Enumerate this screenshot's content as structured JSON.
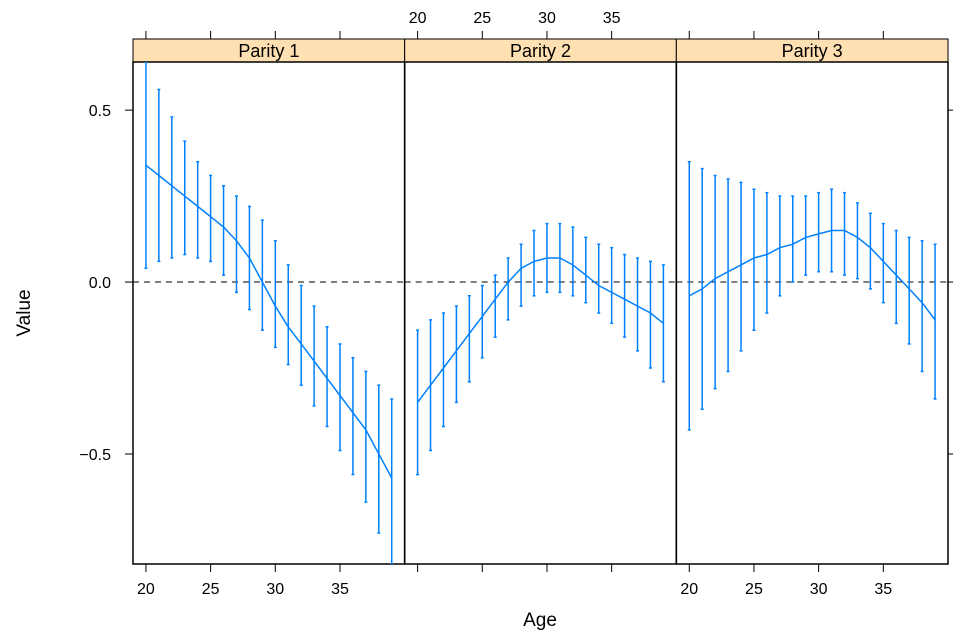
{
  "chart_data": {
    "type": "line",
    "xlabel": "Age",
    "ylabel": "Value",
    "xlim": [
      19,
      40
    ],
    "ylim": [
      -0.82,
      0.64
    ],
    "x_ticks": [
      20,
      25,
      30,
      35
    ],
    "x_tick_labels": [
      "20",
      "25",
      "30",
      "35"
    ],
    "y_ticks": [
      -0.5,
      0.0,
      0.5
    ],
    "y_tick_labels": [
      "−0.5",
      "0.0",
      "0.5"
    ],
    "reference_line": {
      "y": 0,
      "style": "dashed"
    },
    "strip_color": "#ffe0b3",
    "series_color": "#0080ff",
    "panels": [
      {
        "name": "Parity 1",
        "x": [
          20,
          21,
          22,
          23,
          24,
          25,
          26,
          27,
          28,
          29,
          30,
          31,
          32,
          33,
          34,
          35,
          36,
          37,
          38,
          39
        ],
        "fit": [
          0.34,
          0.31,
          0.28,
          0.25,
          0.22,
          0.19,
          0.16,
          0.12,
          0.07,
          0.0,
          -0.07,
          -0.13,
          -0.18,
          -0.23,
          -0.28,
          -0.33,
          -0.38,
          -0.43,
          -0.5,
          -0.57
        ],
        "lower": [
          0.04,
          0.06,
          0.07,
          0.08,
          0.07,
          0.06,
          0.02,
          -0.03,
          -0.08,
          -0.14,
          -0.19,
          -0.24,
          -0.3,
          -0.36,
          -0.42,
          -0.49,
          -0.56,
          -0.64,
          -0.73,
          -0.82
        ],
        "upper": [
          0.64,
          0.56,
          0.48,
          0.41,
          0.35,
          0.31,
          0.28,
          0.25,
          0.22,
          0.18,
          0.12,
          0.05,
          -0.01,
          -0.07,
          -0.13,
          -0.18,
          -0.22,
          -0.26,
          -0.3,
          -0.34
        ]
      },
      {
        "name": "Parity 2",
        "x": [
          20,
          21,
          22,
          23,
          24,
          25,
          26,
          27,
          28,
          29,
          30,
          31,
          32,
          33,
          34,
          35,
          36,
          37,
          38,
          39
        ],
        "fit": [
          -0.35,
          -0.3,
          -0.25,
          -0.2,
          -0.15,
          -0.1,
          -0.05,
          0.0,
          0.04,
          0.06,
          0.07,
          0.07,
          0.05,
          0.02,
          -0.01,
          -0.03,
          -0.05,
          -0.07,
          -0.09,
          -0.12
        ],
        "lower": [
          -0.56,
          -0.49,
          -0.42,
          -0.35,
          -0.29,
          -0.22,
          -0.16,
          -0.11,
          -0.07,
          -0.04,
          -0.03,
          -0.03,
          -0.04,
          -0.06,
          -0.09,
          -0.12,
          -0.16,
          -0.2,
          -0.25,
          -0.29
        ],
        "upper": [
          -0.14,
          -0.11,
          -0.09,
          -0.07,
          -0.04,
          -0.01,
          0.02,
          0.07,
          0.11,
          0.15,
          0.17,
          0.17,
          0.16,
          0.13,
          0.11,
          0.1,
          0.08,
          0.07,
          0.06,
          0.05
        ]
      },
      {
        "name": "Parity 3",
        "x": [
          20,
          21,
          22,
          23,
          24,
          25,
          26,
          27,
          28,
          29,
          30,
          31,
          32,
          33,
          34,
          35,
          36,
          37,
          38,
          39
        ],
        "fit": [
          -0.04,
          -0.02,
          0.01,
          0.03,
          0.05,
          0.07,
          0.08,
          0.1,
          0.11,
          0.13,
          0.14,
          0.15,
          0.15,
          0.13,
          0.1,
          0.06,
          0.02,
          -0.02,
          -0.06,
          -0.11
        ],
        "lower": [
          -0.43,
          -0.37,
          -0.31,
          -0.26,
          -0.2,
          -0.14,
          -0.09,
          -0.04,
          0.0,
          0.02,
          0.03,
          0.03,
          0.02,
          0.01,
          -0.02,
          -0.06,
          -0.12,
          -0.18,
          -0.26,
          -0.34
        ],
        "upper": [
          0.35,
          0.33,
          0.31,
          0.3,
          0.29,
          0.27,
          0.26,
          0.25,
          0.25,
          0.25,
          0.26,
          0.27,
          0.26,
          0.23,
          0.2,
          0.17,
          0.15,
          0.13,
          0.12,
          0.11
        ]
      }
    ]
  }
}
